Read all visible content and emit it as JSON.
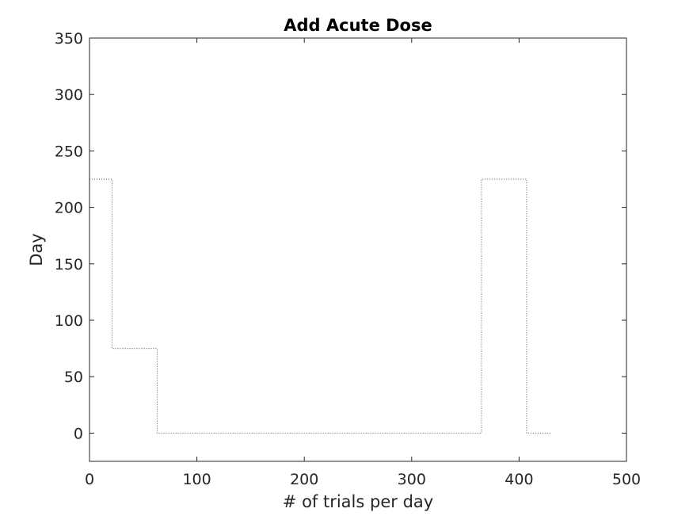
{
  "chart_data": {
    "type": "line",
    "title": "Add Acute Dose",
    "xlabel": "# of trials per day",
    "ylabel": "Day",
    "xlim": [
      0,
      500
    ],
    "ylim": [
      -25,
      350
    ],
    "xticks": [
      0,
      100,
      200,
      300,
      400,
      500
    ],
    "yticks": [
      0,
      50,
      100,
      150,
      200,
      250,
      300,
      350
    ],
    "grid": false,
    "line_style": "dotted",
    "line_color": "#555555",
    "series": [
      {
        "step": "post",
        "x": [
          0,
          21,
          63,
          365,
          407,
          429
        ],
        "y": [
          225,
          75,
          0,
          225,
          0,
          0
        ]
      }
    ]
  }
}
